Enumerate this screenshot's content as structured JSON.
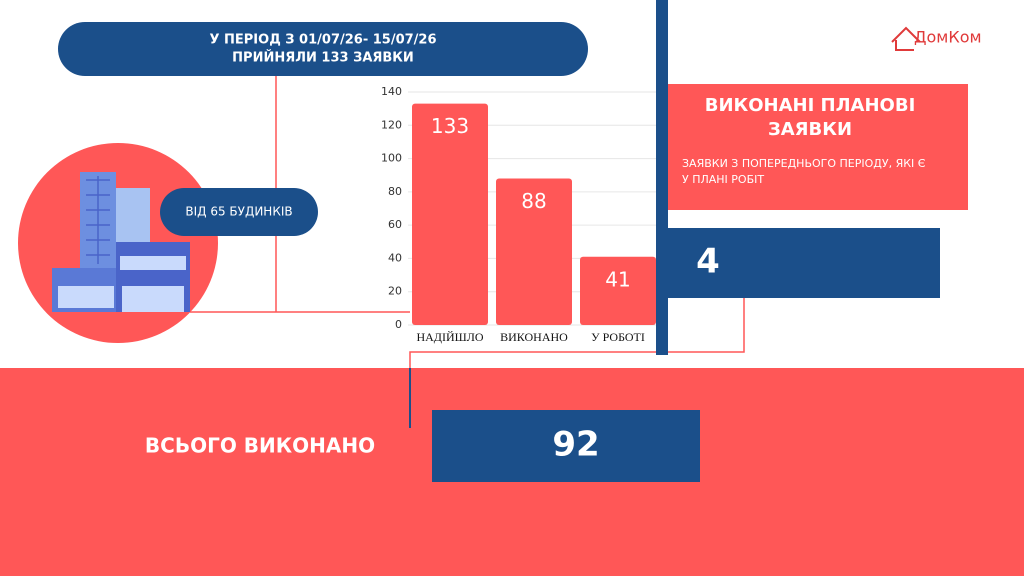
{
  "header": {
    "lines": [
      "У ПЕРІОД З 01/07/26- 15/07/26",
      "ПРИЙНЯЛИ 133 ЗАЯВКИ"
    ]
  },
  "buildings_note": "ВІД 65 БУДИНКІВ",
  "logo": "ДомКом",
  "chart_data": {
    "type": "bar",
    "categories": [
      "НАДІЙШЛО",
      "ВИКОНАНО",
      "У РОБОТІ"
    ],
    "values": [
      133,
      88,
      41
    ],
    "color": "#ff5757",
    "ylim": [
      0,
      140
    ],
    "yticks": [
      0,
      20,
      40,
      60,
      80,
      100,
      120,
      140
    ],
    "grid": true
  },
  "planned": {
    "title_lines": [
      "ВИКОНАНІ ПЛАНОВІ",
      "ЗАЯВКИ"
    ],
    "subtitle_lines": [
      "ЗАЯВКИ З ПОПЕРЕДНЬОГО ПЕРІОДУ, ЯКІ Є",
      "У ПЛАНІ РОБІТ"
    ],
    "value": 4
  },
  "total": {
    "label": "ВСЬОГО ВИКОНАНО",
    "value": 92
  }
}
